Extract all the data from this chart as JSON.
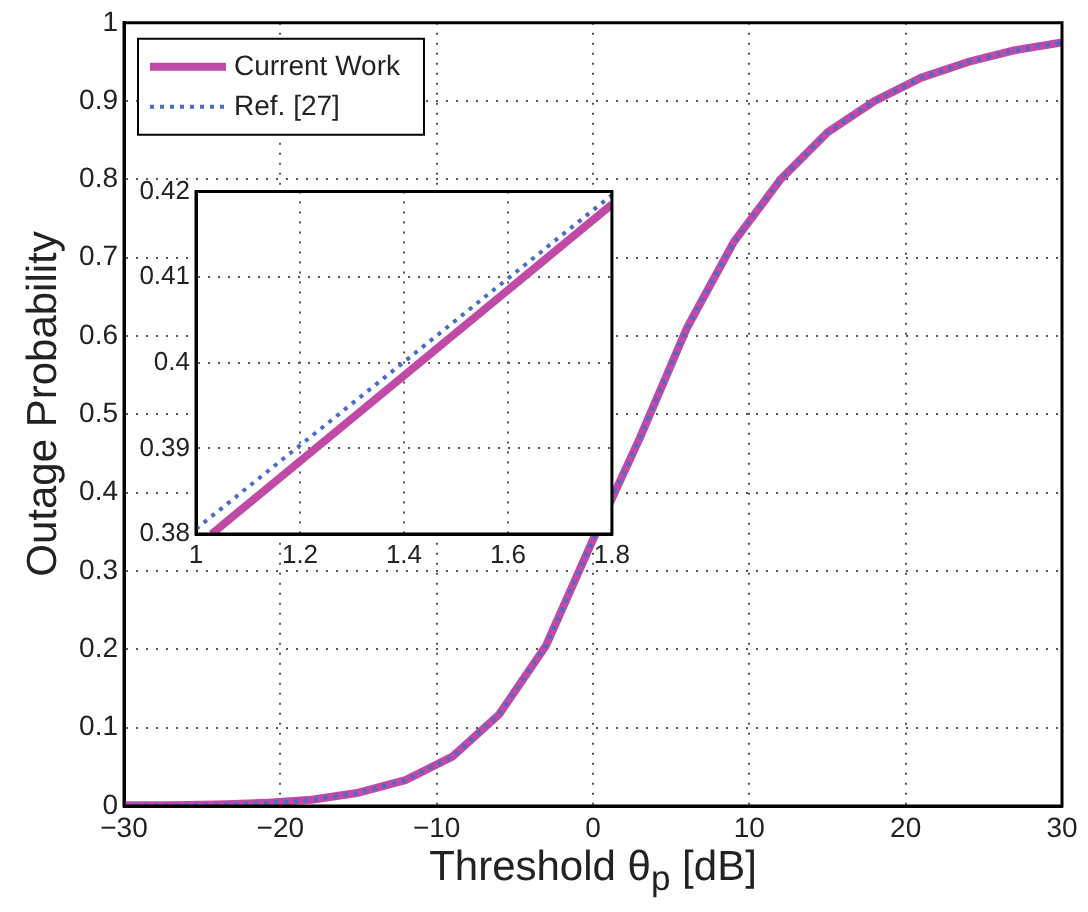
{
  "chart_data": [
    {
      "type": "line",
      "xlabel": "Threshold θ$_{p}$ [dB]",
      "ylabel": "Outage Probability",
      "xlim": [
        -30,
        30
      ],
      "xticks": [
        {
          "value": -30,
          "label": "−30"
        },
        {
          "value": -20,
          "label": "−20"
        },
        {
          "value": -10,
          "label": "−10"
        },
        0,
        10,
        20,
        30
      ],
      "ylim": [
        0,
        1
      ],
      "yticks": [
        0,
        0.1,
        0.2,
        0.3,
        0.4,
        0.5,
        0.6,
        0.7,
        0.8,
        0.9,
        1
      ],
      "grid": true,
      "legend": "top left",
      "series": [
        {
          "name": "Current Work",
          "color": "#c04aa6",
          "line_style": "solid",
          "x": [
            -30,
            -27,
            -24,
            -21,
            -18,
            -15,
            -12,
            -9,
            -6,
            -3,
            0,
            3,
            6,
            9,
            12,
            15,
            18,
            21,
            24,
            27,
            30
          ],
          "values": [
            0.001,
            0.001,
            0.002,
            0.004,
            0.008,
            0.017,
            0.033,
            0.063,
            0.117,
            0.205,
            0.34,
            0.47,
            0.61,
            0.72,
            0.8,
            0.86,
            0.9,
            0.93,
            0.95,
            0.965,
            0.975
          ]
        },
        {
          "name": "Ref. [27]",
          "color": "#4a6cc8",
          "line_style": "dotted",
          "x": [
            -30,
            -27,
            -24,
            -21,
            -18,
            -15,
            -12,
            -9,
            -6,
            -3,
            0,
            3,
            6,
            9,
            12,
            15,
            18,
            21,
            24,
            27,
            30
          ],
          "values": [
            0.001,
            0.001,
            0.002,
            0.004,
            0.008,
            0.017,
            0.033,
            0.063,
            0.117,
            0.205,
            0.34,
            0.47,
            0.61,
            0.72,
            0.8,
            0.86,
            0.9,
            0.93,
            0.95,
            0.965,
            0.975
          ]
        }
      ]
    },
    {
      "type": "line",
      "xlim": [
        1,
        1.8
      ],
      "xticks": [
        1,
        1.2,
        1.4,
        1.6,
        1.8
      ],
      "ylim": [
        0.38,
        0.42
      ],
      "yticks": [
        0.38,
        0.39,
        0.4,
        0.41,
        0.42
      ],
      "grid": true,
      "series": [
        {
          "color": "#c04aa6",
          "line_style": "solid",
          "x": [
            1.03,
            1.8
          ],
          "values": [
            0.38,
            0.4185
          ]
        },
        {
          "color": "#4a6cc8",
          "line_style": "dotted",
          "x": [
            1,
            1.8
          ],
          "values": [
            0.3806,
            0.4196
          ]
        }
      ]
    }
  ]
}
